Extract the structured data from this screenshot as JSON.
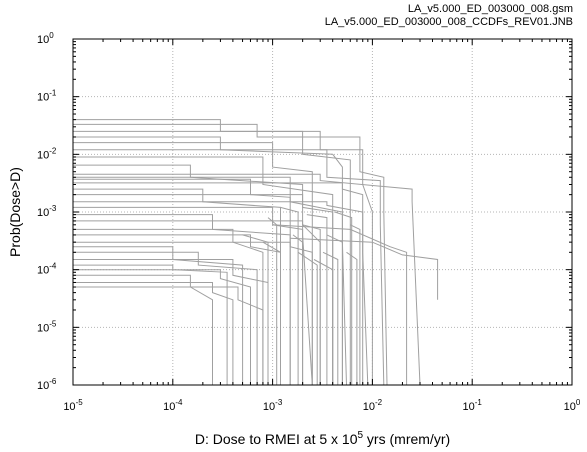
{
  "header": {
    "line1": "LA_v5.000_ED_003000_008.gsm",
    "line2": "LA_v5.000_ED_003000_008_CCDFs_REV01.JNB"
  },
  "chart_data": {
    "type": "line",
    "xscale": "log",
    "yscale": "log",
    "xlim": [
      1e-05,
      1
    ],
    "ylim": [
      1e-06,
      1
    ],
    "x_ticks": [
      {
        "base": "10",
        "exp": "-5"
      },
      {
        "base": "10",
        "exp": "-4"
      },
      {
        "base": "10",
        "exp": "-3"
      },
      {
        "base": "10",
        "exp": "-2"
      },
      {
        "base": "10",
        "exp": "-1"
      },
      {
        "base": "10",
        "exp": "0"
      }
    ],
    "y_ticks": [
      {
        "base": "10",
        "exp": "0"
      },
      {
        "base": "10",
        "exp": "-1"
      },
      {
        "base": "10",
        "exp": "-2"
      },
      {
        "base": "10",
        "exp": "-3"
      },
      {
        "base": "10",
        "exp": "-4"
      },
      {
        "base": "10",
        "exp": "-5"
      },
      {
        "base": "10",
        "exp": "-6"
      }
    ],
    "xlabel": {
      "pre": "D: Dose to RMEI at 5 x 10",
      "sup": "5",
      "post": " yrs (mrem/yr)"
    },
    "ylabel": "Prob(Dose>D)",
    "grid": true,
    "line_color": "#a0a0a0",
    "series": [
      {
        "values": [
          [
            1e-05,
            0.04
          ],
          [
            0.0003,
            0.04
          ],
          [
            0.0003,
            0.025
          ],
          [
            0.003,
            0.025
          ],
          [
            0.003,
            0.012
          ],
          [
            0.008,
            0.012
          ],
          [
            0.008,
            0.003
          ],
          [
            0.01,
            0.001
          ],
          [
            0.01,
            1e-06
          ]
        ]
      },
      {
        "values": [
          [
            1e-05,
            0.033
          ],
          [
            0.0007,
            0.033
          ],
          [
            0.0007,
            0.02
          ],
          [
            0.0075,
            0.02
          ],
          [
            0.0075,
            0.005
          ],
          [
            0.013,
            0.004
          ],
          [
            0.013,
            0.001
          ],
          [
            0.014,
            1e-06
          ]
        ]
      },
      {
        "values": [
          [
            1e-05,
            0.025
          ],
          [
            0.002,
            0.025
          ],
          [
            0.002,
            0.01
          ],
          [
            0.006,
            0.008
          ],
          [
            0.006,
            1e-06
          ]
        ]
      },
      {
        "values": [
          [
            1e-05,
            0.02
          ],
          [
            0.0003,
            0.02
          ],
          [
            0.0003,
            0.012
          ],
          [
            0.004,
            0.01
          ],
          [
            0.005,
            0.006
          ],
          [
            0.005,
            0.0003
          ],
          [
            0.0055,
            1e-06
          ]
        ]
      },
      {
        "values": [
          [
            1e-05,
            0.016
          ],
          [
            0.001,
            0.016
          ],
          [
            0.001,
            0.006
          ],
          [
            0.0025,
            0.005
          ],
          [
            0.0025,
            1e-06
          ]
        ]
      },
      {
        "values": [
          [
            1e-05,
            0.012
          ],
          [
            0.0035,
            0.012
          ],
          [
            0.0035,
            0.004
          ],
          [
            0.012,
            0.0035
          ],
          [
            0.012,
            0.0006
          ],
          [
            0.013,
            1e-06
          ]
        ]
      },
      {
        "values": [
          [
            1e-05,
            0.009
          ],
          [
            0.0008,
            0.009
          ],
          [
            0.0008,
            0.003
          ],
          [
            0.004,
            0.002
          ],
          [
            0.004,
            1e-06
          ]
        ]
      },
      {
        "values": [
          [
            1e-05,
            0.0065
          ],
          [
            0.00015,
            0.0065
          ],
          [
            0.00015,
            0.004
          ],
          [
            0.002,
            0.003
          ],
          [
            0.002,
            0.0004
          ],
          [
            0.0025,
            1e-06
          ]
        ]
      },
      {
        "values": [
          [
            1e-05,
            0.0045
          ],
          [
            0.003,
            0.0045
          ],
          [
            0.003,
            0.0035
          ],
          [
            0.025,
            0.0025
          ],
          [
            0.025,
            0.0015
          ],
          [
            0.03,
            1e-06
          ]
        ]
      },
      {
        "values": [
          [
            1e-05,
            0.004
          ],
          [
            0.0015,
            0.004
          ],
          [
            0.0015,
            0.0015
          ],
          [
            0.005,
            0.001
          ],
          [
            0.005,
            1e-06
          ]
        ]
      },
      {
        "values": [
          [
            1e-05,
            0.0037
          ],
          [
            0.0006,
            0.0037
          ],
          [
            0.0006,
            0.002
          ],
          [
            0.0015,
            0.0018
          ],
          [
            0.0015,
            1e-06
          ]
        ]
      },
      {
        "values": [
          [
            1e-05,
            0.0032
          ],
          [
            0.005,
            0.0032
          ],
          [
            0.005,
            0.0025
          ],
          [
            0.008,
            0.002
          ],
          [
            0.008,
            0.0002
          ],
          [
            0.009,
            1e-06
          ]
        ]
      },
      {
        "values": [
          [
            1e-05,
            0.0025
          ],
          [
            0.0002,
            0.0025
          ],
          [
            0.0002,
            0.0015
          ],
          [
            0.0012,
            0.0012
          ],
          [
            0.0012,
            1e-06
          ]
        ]
      },
      {
        "values": [
          [
            1e-05,
            0.002
          ],
          [
            0.002,
            0.002
          ],
          [
            0.002,
            0.0012
          ],
          [
            0.004,
            0.001
          ],
          [
            0.004,
            1e-06
          ]
        ]
      },
      {
        "values": [
          [
            1e-05,
            0.0015
          ],
          [
            0.0035,
            0.0015
          ],
          [
            0.0035,
            0.0013
          ],
          [
            0.008,
            0.001
          ],
          [
            0.008,
            1e-06
          ]
        ]
      },
      {
        "values": [
          [
            1e-05,
            0.0012
          ],
          [
            0.001,
            0.0012
          ],
          [
            0.001,
            0.0006
          ],
          [
            0.002,
            0.0005
          ],
          [
            0.002,
            1e-06
          ]
        ]
      },
      {
        "values": [
          [
            1e-05,
            0.0009
          ],
          [
            0.00025,
            0.0009
          ],
          [
            0.00025,
            0.0005
          ],
          [
            0.0015,
            0.0004
          ],
          [
            0.0015,
            1e-06
          ]
        ]
      },
      {
        "values": [
          [
            1e-05,
            0.0007
          ],
          [
            0.002,
            0.0007
          ],
          [
            0.002,
            0.0006
          ],
          [
            0.003,
            0.0005
          ],
          [
            0.003,
            1e-06
          ]
        ]
      },
      {
        "values": [
          [
            1e-05,
            0.0005
          ],
          [
            0.0004,
            0.0005
          ],
          [
            0.0004,
            0.0003
          ],
          [
            0.0008,
            0.0002
          ],
          [
            0.0008,
            1e-06
          ]
        ]
      },
      {
        "values": [
          [
            1e-05,
            0.0004
          ],
          [
            0.0006,
            0.0004
          ],
          [
            0.0006,
            0.00025
          ],
          [
            0.0012,
            0.0002
          ],
          [
            0.0012,
            1e-06
          ]
        ]
      },
      {
        "values": [
          [
            1e-05,
            0.0003
          ],
          [
            0.0015,
            0.0003
          ],
          [
            0.0015,
            0.00025
          ],
          [
            0.0025,
            0.0002
          ],
          [
            0.0025,
            1e-06
          ]
        ]
      },
      {
        "values": [
          [
            1e-05,
            0.00025
          ],
          [
            0.0001,
            0.00025
          ],
          [
            0.0001,
            0.00015
          ],
          [
            0.0005,
            0.00012
          ],
          [
            0.0005,
            1e-06
          ]
        ]
      },
      {
        "values": [
          [
            1e-05,
            0.0002
          ],
          [
            0.00018,
            0.0002
          ],
          [
            0.00018,
            0.00012
          ],
          [
            0.0007,
            0.0001
          ],
          [
            0.0007,
            1e-06
          ]
        ]
      },
      {
        "values": [
          [
            1e-05,
            0.00015
          ],
          [
            0.0004,
            0.00015
          ],
          [
            0.0004,
            8e-05
          ],
          [
            0.0009,
            6e-05
          ],
          [
            0.0009,
            1e-06
          ]
        ]
      },
      {
        "values": [
          [
            1e-05,
            0.00012
          ],
          [
            0.0001,
            0.00012
          ],
          [
            0.0001,
            0.0001
          ],
          [
            0.00035,
            9e-05
          ],
          [
            0.00035,
            1e-06
          ]
        ]
      },
      {
        "values": [
          [
            1e-05,
            0.0001
          ],
          [
            0.0003,
            0.0001
          ],
          [
            0.0003,
            7e-05
          ],
          [
            0.0006,
            5e-05
          ],
          [
            0.0006,
            1e-06
          ]
        ]
      },
      {
        "values": [
          [
            1e-05,
            8e-05
          ],
          [
            0.00015,
            8e-05
          ],
          [
            0.00015,
            5e-05
          ],
          [
            0.00025,
            3e-05
          ],
          [
            0.00025,
            1e-06
          ]
        ]
      },
      {
        "values": [
          [
            1e-05,
            6e-05
          ],
          [
            0.00025,
            6e-05
          ],
          [
            0.00025,
            4e-05
          ],
          [
            0.0004,
            3e-05
          ],
          [
            0.0004,
            1e-06
          ]
        ]
      },
      {
        "values": [
          [
            1e-05,
            5e-05
          ],
          [
            0.00045,
            5e-05
          ],
          [
            0.00045,
            3e-05
          ],
          [
            0.0008,
            2e-05
          ],
          [
            0.0008,
            1e-06
          ]
        ]
      },
      {
        "values": [
          [
            0.0015,
            0.00035
          ],
          [
            0.01,
            0.0003
          ],
          [
            0.02,
            0.00018
          ],
          [
            0.045,
            0.00015
          ],
          [
            0.045,
            3e-05
          ]
        ]
      },
      {
        "values": [
          [
            0.001,
            0.0006
          ],
          [
            0.006,
            0.0005
          ],
          [
            0.015,
            0.00025
          ],
          [
            0.022,
            0.0002
          ],
          [
            0.022,
            1e-06
          ]
        ]
      },
      {
        "values": [
          [
            0.002,
            0.0006
          ],
          [
            0.003,
            0.0003
          ],
          [
            0.003,
            1e-06
          ]
        ]
      },
      {
        "values": [
          [
            0.0008,
            0.0003
          ],
          [
            0.0012,
            0.0002
          ],
          [
            0.0012,
            1e-06
          ]
        ]
      },
      {
        "values": [
          [
            0.0018,
            0.0002
          ],
          [
            0.0028,
            0.00012
          ],
          [
            0.0028,
            1e-06
          ]
        ]
      },
      {
        "values": [
          [
            0.0035,
            0.0004
          ],
          [
            0.005,
            0.0003
          ],
          [
            0.005,
            1e-06
          ]
        ]
      },
      {
        "values": [
          [
            0.0022,
            0.0009
          ],
          [
            0.0035,
            0.0008
          ],
          [
            0.0035,
            1e-06
          ]
        ]
      },
      {
        "values": [
          [
            0.006,
            0.0006
          ],
          [
            0.0075,
            0.0005
          ],
          [
            0.0075,
            1e-06
          ]
        ]
      },
      {
        "values": [
          [
            0.0012,
            0.0012
          ],
          [
            0.0018,
            0.001
          ],
          [
            0.0018,
            1e-06
          ]
        ]
      },
      {
        "values": [
          [
            0.0005,
            0.0004
          ],
          [
            0.0009,
            0.0003
          ],
          [
            0.0009,
            1e-06
          ]
        ]
      },
      {
        "values": [
          [
            0.0026,
            0.00015
          ],
          [
            0.004,
            0.0001
          ],
          [
            0.004,
            1e-06
          ]
        ]
      },
      {
        "values": [
          [
            0.0032,
            0.0002
          ],
          [
            0.0045,
            0.00015
          ],
          [
            0.0045,
            1e-06
          ]
        ]
      },
      {
        "values": [
          [
            0.0042,
            0.001
          ],
          [
            0.0062,
            0.0008
          ],
          [
            0.0062,
            1e-06
          ]
        ]
      },
      {
        "values": [
          [
            0.0055,
            0.0002
          ],
          [
            0.007,
            0.00015
          ],
          [
            0.007,
            1e-06
          ]
        ]
      },
      {
        "values": [
          [
            0.0009,
            0.0008
          ],
          [
            0.0011,
            0.0006
          ],
          [
            0.0011,
            1e-06
          ]
        ]
      },
      {
        "values": [
          [
            0.0016,
            0.0004
          ],
          [
            0.002,
            0.0003
          ],
          [
            0.002,
            1e-06
          ]
        ]
      }
    ]
  }
}
